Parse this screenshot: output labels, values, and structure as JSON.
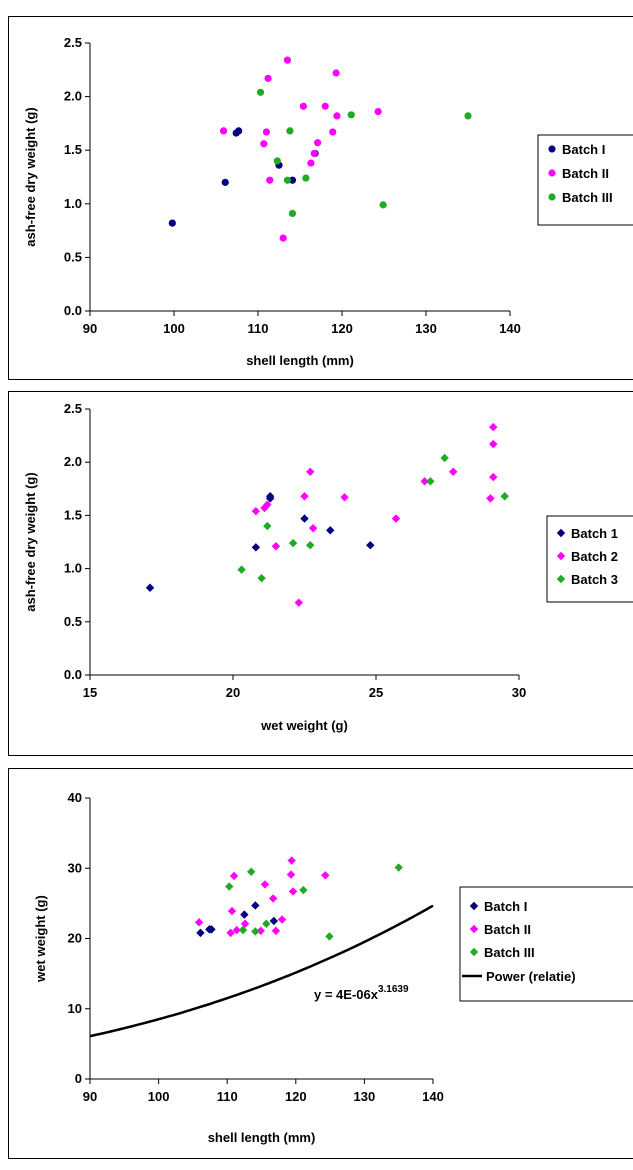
{
  "chart_data": [
    {
      "type": "scatter",
      "xlabel": "shell length (mm)",
      "ylabel": "ash-free dry weight (g)",
      "xlim": [
        90,
        140
      ],
      "ylim": [
        0,
        2.5
      ],
      "xticks": [
        "90",
        "100",
        "110",
        "120",
        "130",
        "140"
      ],
      "yticks": [
        "0.0",
        "0.5",
        "1.0",
        "1.5",
        "2.0",
        "2.5"
      ],
      "marker": "circle",
      "legend_position": "right",
      "series": [
        {
          "name": "Batch I",
          "color": "#000080",
          "points": [
            [
              99.8,
              0.82
            ],
            [
              106.1,
              1.2
            ],
            [
              107.4,
              1.66
            ],
            [
              107.7,
              1.68
            ],
            [
              112.5,
              1.36
            ],
            [
              114.1,
              1.22
            ],
            [
              116.8,
              1.47
            ]
          ]
        },
        {
          "name": "Batch II",
          "color": "#ff00ff",
          "points": [
            [
              105.9,
              1.68
            ],
            [
              110.7,
              1.56
            ],
            [
              111.0,
              1.67
            ],
            [
              111.2,
              2.17
            ],
            [
              111.4,
              1.22
            ],
            [
              113.0,
              0.68
            ],
            [
              113.5,
              2.34
            ],
            [
              115.4,
              1.91
            ],
            [
              116.3,
              1.38
            ],
            [
              116.7,
              1.47
            ],
            [
              117.1,
              1.57
            ],
            [
              118.0,
              1.91
            ],
            [
              118.9,
              1.67
            ],
            [
              119.3,
              2.22
            ],
            [
              119.4,
              1.82
            ],
            [
              124.3,
              1.86
            ]
          ]
        },
        {
          "name": "Batch III",
          "color": "#22aa22",
          "points": [
            [
              110.3,
              2.04
            ],
            [
              112.3,
              1.4
            ],
            [
              113.5,
              1.22
            ],
            [
              113.8,
              1.68
            ],
            [
              114.1,
              0.91
            ],
            [
              115.7,
              1.24
            ],
            [
              121.1,
              1.83
            ],
            [
              124.9,
              0.99
            ],
            [
              135.0,
              1.82
            ]
          ]
        }
      ]
    },
    {
      "type": "scatter",
      "xlabel": "wet weight (g)",
      "ylabel": "ash-free dry weight (g)",
      "xlim": [
        15,
        30
      ],
      "ylim": [
        0,
        2.5
      ],
      "xticks": [
        "15",
        "20",
        "25",
        "30"
      ],
      "yticks": [
        "0.0",
        "0.5",
        "1.0",
        "1.5",
        "2.0",
        "2.5"
      ],
      "marker": "diamond",
      "legend_position": "right",
      "series": [
        {
          "name": "Batch 1",
          "color": "#000080",
          "points": [
            [
              17.1,
              0.82
            ],
            [
              20.8,
              1.2
            ],
            [
              21.3,
              1.66
            ],
            [
              21.3,
              1.68
            ],
            [
              22.5,
              1.47
            ],
            [
              23.4,
              1.36
            ],
            [
              24.8,
              1.22
            ]
          ]
        },
        {
          "name": "Batch 2",
          "color": "#ff00ff",
          "points": [
            [
              20.8,
              1.54
            ],
            [
              21.1,
              1.57
            ],
            [
              21.2,
              1.6
            ],
            [
              21.5,
              1.21
            ],
            [
              22.3,
              0.68
            ],
            [
              22.5,
              1.68
            ],
            [
              22.7,
              1.91
            ],
            [
              22.8,
              1.38
            ],
            [
              23.9,
              1.67
            ],
            [
              25.7,
              1.47
            ],
            [
              26.7,
              1.82
            ],
            [
              27.7,
              1.91
            ],
            [
              29.0,
              1.66
            ],
            [
              29.1,
              1.86
            ],
            [
              29.1,
              2.17
            ],
            [
              29.1,
              2.33
            ]
          ]
        },
        {
          "name": "Batch 3",
          "color": "#22aa22",
          "points": [
            [
              20.3,
              0.99
            ],
            [
              21.0,
              0.91
            ],
            [
              21.2,
              1.4
            ],
            [
              22.1,
              1.24
            ],
            [
              22.7,
              1.22
            ],
            [
              26.9,
              1.82
            ],
            [
              27.4,
              2.04
            ],
            [
              29.5,
              1.68
            ]
          ]
        }
      ]
    },
    {
      "type": "scatter",
      "xlabel": "shell length (mm)",
      "ylabel": "wet weight (g)",
      "xlim": [
        90,
        140
      ],
      "ylim": [
        0,
        40
      ],
      "xticks": [
        "90",
        "100",
        "110",
        "120",
        "130",
        "140"
      ],
      "yticks": [
        "0",
        "10",
        "20",
        "30",
        "40"
      ],
      "marker": "diamond",
      "legend_position": "right",
      "series": [
        {
          "name": "Batch I",
          "color": "#000080",
          "points": [
            [
              106.1,
              20.8
            ],
            [
              107.4,
              21.3
            ],
            [
              107.7,
              21.3
            ],
            [
              112.5,
              23.4
            ],
            [
              114.1,
              24.7
            ],
            [
              116.8,
              22.5
            ]
          ]
        },
        {
          "name": "Batch II",
          "color": "#ff00ff",
          "points": [
            [
              105.9,
              22.3
            ],
            [
              110.5,
              20.8
            ],
            [
              110.7,
              23.9
            ],
            [
              111.0,
              28.9
            ],
            [
              111.4,
              21.2
            ],
            [
              112.6,
              22.1
            ],
            [
              114.9,
              21.1
            ],
            [
              115.5,
              27.7
            ],
            [
              116.7,
              25.7
            ],
            [
              117.1,
              21.1
            ],
            [
              118.0,
              22.7
            ],
            [
              119.3,
              29.1
            ],
            [
              119.4,
              31.1
            ],
            [
              119.6,
              26.7
            ],
            [
              124.3,
              29.0
            ]
          ]
        },
        {
          "name": "Batch III",
          "color": "#22aa22",
          "points": [
            [
              110.3,
              27.4
            ],
            [
              112.3,
              21.2
            ],
            [
              113.5,
              29.5
            ],
            [
              114.1,
              21.0
            ],
            [
              115.7,
              22.1
            ],
            [
              121.1,
              26.9
            ],
            [
              124.9,
              20.3
            ],
            [
              135.0,
              30.1
            ]
          ]
        },
        {
          "name": "Power (relatie)",
          "color": "#000000",
          "type": "line",
          "curve": {
            "a": 4e-06,
            "b": 3.1639
          }
        }
      ],
      "annotation": {
        "prefix": "y = 4E-06x",
        "sup": "3.1639"
      }
    }
  ]
}
